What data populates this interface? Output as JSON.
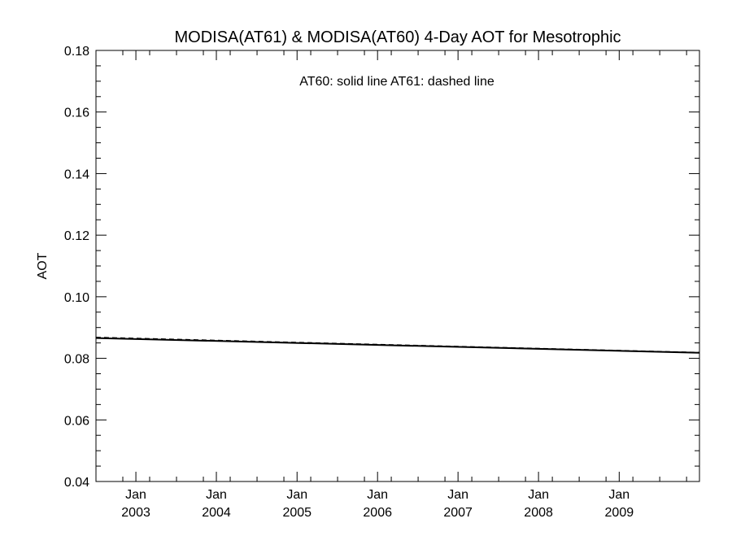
{
  "chart_data": {
    "type": "line",
    "title": "MODISA(AT61) & MODISA(AT60) 4-Day AOT for Mesotrophic",
    "xlabel": "",
    "ylabel": "AOT",
    "annotation": "AT60: solid line   AT61: dashed line",
    "xlim": [
      "2002-07-04",
      "2009-12-31"
    ],
    "ylim": [
      0.04,
      0.18
    ],
    "y_ticks": [
      "0.04",
      "0.06",
      "0.08",
      "0.10",
      "0.12",
      "0.14",
      "0.16",
      "0.18"
    ],
    "x_ticks": [
      {
        "date": "2003-01-01",
        "month": "Jan",
        "year": "2003"
      },
      {
        "date": "2004-01-01",
        "month": "Jan",
        "year": "2004"
      },
      {
        "date": "2005-01-01",
        "month": "Jan",
        "year": "2005"
      },
      {
        "date": "2006-01-01",
        "month": "Jan",
        "year": "2006"
      },
      {
        "date": "2007-01-01",
        "month": "Jan",
        "year": "2007"
      },
      {
        "date": "2008-01-01",
        "month": "Jan",
        "year": "2008"
      },
      {
        "date": "2009-01-01",
        "month": "Jan",
        "year": "2009"
      }
    ],
    "series": [
      {
        "style": "solid",
        "x": [
          "2002-07-04",
          "2009-12-31"
        ],
        "y": [
          0.0866,
          0.0818
        ]
      },
      {
        "style": "dashed",
        "x": [
          "2002-07-04",
          "2009-12-31"
        ],
        "y": [
          0.0868,
          0.0819
        ]
      }
    ],
    "grid": false,
    "colors": {
      "line": "#000000",
      "background": "#ffffff"
    }
  }
}
